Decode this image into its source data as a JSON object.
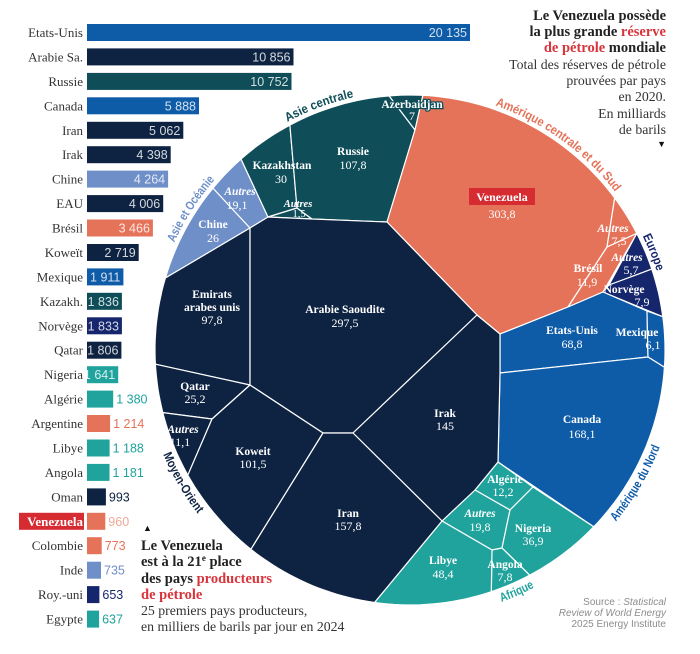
{
  "intro_top": {
    "headline_1": "Le Venezuela possède",
    "headline_2": "la plus grande ",
    "headline_2_accent": "réserve",
    "headline_3_accent": "de pétrole",
    "headline_3": " mondiale",
    "description": [
      "Total des réserves de pétrole",
      "prouvées par pays",
      "en 2020.",
      "En milliards",
      "de barils"
    ],
    "pointer": "▼"
  },
  "intro_bottom": {
    "pointer": "▲",
    "headline_1": "Le Venezuela",
    "headline_2": "est à la 21",
    "headline_2_sup": "e",
    "headline_2_end": " place",
    "headline_3": "des pays ",
    "headline_3_accent": "producteurs",
    "headline_4_accent": "de pétrole",
    "description": [
      "25 premiers pays producteurs,",
      "en milliers de barils par jour en 2024"
    ]
  },
  "source": {
    "label": "Source : ",
    "line1_italic": "Statistical",
    "line2_italic": "Review of World Energy",
    "line3": "2025 Energy Institute"
  },
  "colors": {
    "highlight": "#d52b31",
    "accent_text": "#d9343c",
    "region_colors": {
      "Asie et Océanie": "#6f8fc9",
      "Asie centrale": "#0f4d59",
      "Amérique centrale et du Sud": "#e5735a",
      "Europe": "#15266c",
      "Amérique du Nord": "#0e5ba8",
      "Afrique": "#1fa39c",
      "Moyen-Orient": "#0e2342"
    }
  },
  "chart_data": [
    {
      "type": "bar",
      "orientation": "horizontal",
      "title": "Le Venezuela est à la 21e place des pays producteurs de pétrole",
      "subtitle": "25 premiers pays producteurs, en milliers de barils par jour en 2024",
      "xlabel": "",
      "ylabel": "",
      "xlim": [
        0,
        20135
      ],
      "grid": false,
      "highlight": "Venezuela",
      "highlight_value_color": "#f0a898",
      "categories": [
        "Etats-Unis",
        "Arabie Sa.",
        "Russie",
        "Canada",
        "Iran",
        "Irak",
        "Chine",
        "EAU",
        "Brésil",
        "Koweït",
        "Mexique",
        "Kazakh.",
        "Norvège",
        "Qatar",
        "Nigeria",
        "Algérie",
        "Argentine",
        "Libye",
        "Angola",
        "Oman",
        "Venezuela",
        "Colombie",
        "Inde",
        "Roy.-uni",
        "Egypte"
      ],
      "values": [
        20135,
        10856,
        10752,
        5888,
        5062,
        4398,
        4264,
        4006,
        3466,
        2719,
        1911,
        1836,
        1833,
        1806,
        1641,
        1380,
        1214,
        1188,
        1181,
        993,
        960,
        773,
        735,
        653,
        637
      ],
      "value_labels": [
        "20 135",
        "10 856",
        "10 752",
        "5 888",
        "5 062",
        "4 398",
        "4 264",
        "4 006",
        "3 466",
        "2 719",
        "1 911",
        "1 836",
        "1 833",
        "1 806",
        "1 641",
        "1 380",
        "1 214",
        "1 188",
        "1 181",
        "993",
        "960",
        "773",
        "735",
        "653",
        "637"
      ],
      "regions": [
        "Amérique du Nord",
        "Moyen-Orient",
        "Asie centrale",
        "Amérique du Nord",
        "Moyen-Orient",
        "Moyen-Orient",
        "Asie et Océanie",
        "Moyen-Orient",
        "Amérique centrale et du Sud",
        "Moyen-Orient",
        "Amérique du Nord",
        "Asie centrale",
        "Europe",
        "Moyen-Orient",
        "Afrique",
        "Afrique",
        "Amérique centrale et du Sud",
        "Afrique",
        "Afrique",
        "Moyen-Orient",
        "Amérique centrale et du Sud",
        "Amérique centrale et du Sud",
        "Asie et Océanie",
        "Europe",
        "Afrique"
      ]
    },
    {
      "type": "pie",
      "subtype": "voronoi-treemap",
      "title": "Le Venezuela possède la plus grande réserve de pétrole mondiale",
      "subtitle": "Total des réserves de pétrole prouvées par pays en 2020. En milliards de barils",
      "highlight": "Venezuela",
      "groups": [
        {
          "name": "Asie et Océanie",
          "cells": [
            {
              "name": [
                "Chine"
              ],
              "value": 26,
              "label": "26"
            },
            {
              "name": [
                "Autres"
              ],
              "value": 19.1,
              "label": "19,1",
              "is_other": true
            }
          ]
        },
        {
          "name": "Asie centrale",
          "cells": [
            {
              "name": [
                "Kazakhstan"
              ],
              "value": 30,
              "label": "30"
            },
            {
              "name": [
                "Autres"
              ],
              "value": 1.5,
              "label": "1,5",
              "is_other": true
            },
            {
              "name": [
                "Russie"
              ],
              "value": 107.8,
              "label": "107,8"
            },
            {
              "name": [
                "Azerbaidjan"
              ],
              "value": 7,
              "label": "7"
            }
          ]
        },
        {
          "name": "Amérique centrale et du Sud",
          "cells": [
            {
              "name": [
                "Venezuela"
              ],
              "value": 303.8,
              "label": "303,8"
            },
            {
              "name": [
                "Autres"
              ],
              "value": 7.5,
              "label": "7,5",
              "is_other": true
            },
            {
              "name": [
                "Brésil"
              ],
              "value": 11.9,
              "label": "11,9"
            }
          ]
        },
        {
          "name": "Europe",
          "cells": [
            {
              "name": [
                "Autres"
              ],
              "value": 5.7,
              "label": "5,7",
              "is_other": true
            },
            {
              "name": [
                "Norvège"
              ],
              "value": 7.9,
              "label": "7,9"
            }
          ]
        },
        {
          "name": "Amérique du Nord",
          "cells": [
            {
              "name": [
                "Etats-Unis"
              ],
              "value": 68.8,
              "label": "68,8"
            },
            {
              "name": [
                "Mexique"
              ],
              "value": 6.1,
              "label": "6,1"
            },
            {
              "name": [
                "Canada"
              ],
              "value": 168.1,
              "label": "168,1"
            }
          ]
        },
        {
          "name": "Afrique",
          "cells": [
            {
              "name": [
                "Algérie"
              ],
              "value": 12.2,
              "label": "12,2"
            },
            {
              "name": [
                "Autres"
              ],
              "value": 19.8,
              "label": "19,8",
              "is_other": true
            },
            {
              "name": [
                "Nigeria"
              ],
              "value": 36.9,
              "label": "36,9"
            },
            {
              "name": [
                "Angola"
              ],
              "value": 7.8,
              "label": "7,8"
            },
            {
              "name": [
                "Libye"
              ],
              "value": 48.4,
              "label": "48,4"
            }
          ]
        },
        {
          "name": "Moyen-Orient",
          "cells": [
            {
              "name": [
                "Emirats",
                "arabes unis"
              ],
              "value": 97.8,
              "label": "97,8"
            },
            {
              "name": [
                "Arabie Saoudite"
              ],
              "value": 297.5,
              "label": "297,5"
            },
            {
              "name": [
                "Qatar"
              ],
              "value": 25.2,
              "label": "25,2"
            },
            {
              "name": [
                "Autres"
              ],
              "value": 11.1,
              "label": "11,1",
              "is_other": true
            },
            {
              "name": [
                "Koweit"
              ],
              "value": 101.5,
              "label": "101,5"
            },
            {
              "name": [
                "Irak"
              ],
              "value": 145,
              "label": "145"
            },
            {
              "name": [
                "Iran"
              ],
              "value": 157.8,
              "label": "157,8"
            }
          ]
        }
      ]
    }
  ]
}
